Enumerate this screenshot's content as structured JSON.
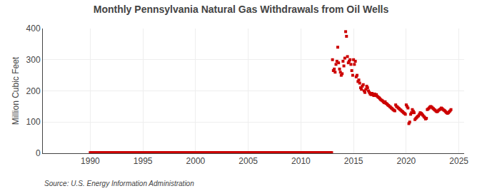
{
  "chart_data": {
    "type": "scatter",
    "title": "Monthly Pennsylvania Natural Gas Withdrawals from Oil Wells",
    "ylabel": "Million Cubic Feet",
    "annotations": [
      "Source: U.S. Energy Information Administration"
    ],
    "xlim": [
      1985.5,
      2025.5
    ],
    "xticks": [
      1990,
      1995,
      2000,
      2005,
      2010,
      2015,
      2020,
      2025
    ],
    "ylim": [
      0,
      400
    ],
    "yticks": [
      0,
      100,
      200,
      300,
      400
    ],
    "grid": true,
    "series": [
      {
        "color": "#cc0000",
        "marker": "square",
        "x": [
          1990.0,
          1990.08,
          1990.17,
          1990.25,
          1990.33,
          1990.42,
          1990.5,
          1990.58,
          1990.67,
          1990.75,
          1990.83,
          1990.92,
          1991.0,
          1991.08,
          1991.17,
          1991.25,
          1991.33,
          1991.42,
          1991.5,
          1991.58,
          1991.67,
          1991.75,
          1991.83,
          1991.92,
          1992.0,
          1992.08,
          1992.17,
          1992.25,
          1992.33,
          1992.42,
          1992.5,
          1992.58,
          1992.67,
          1992.75,
          1992.83,
          1992.92,
          1993.0,
          1993.08,
          1993.17,
          1993.25,
          1993.33,
          1993.42,
          1993.5,
          1993.58,
          1993.67,
          1993.75,
          1993.83,
          1993.92,
          1994.0,
          1994.08,
          1994.17,
          1994.25,
          1994.33,
          1994.42,
          1994.5,
          1994.58,
          1994.67,
          1994.75,
          1994.83,
          1994.92,
          1995.0,
          1995.08,
          1995.17,
          1995.25,
          1995.33,
          1995.42,
          1995.5,
          1995.58,
          1995.67,
          1995.75,
          1995.83,
          1995.92,
          1996.0,
          1996.08,
          1996.17,
          1996.25,
          1996.33,
          1996.42,
          1996.5,
          1996.58,
          1996.67,
          1996.75,
          1996.83,
          1996.92,
          1997.0,
          1997.08,
          1997.17,
          1997.25,
          1997.33,
          1997.42,
          1997.5,
          1997.58,
          1997.67,
          1997.75,
          1997.83,
          1997.92,
          1998.0,
          1998.08,
          1998.17,
          1998.25,
          1998.33,
          1998.42,
          1998.5,
          1998.58,
          1998.67,
          1998.75,
          1998.83,
          1998.92,
          1999.0,
          1999.08,
          1999.17,
          1999.25,
          1999.33,
          1999.42,
          1999.5,
          1999.58,
          1999.67,
          1999.75,
          1999.83,
          1999.92,
          2000.0,
          2000.08,
          2000.17,
          2000.25,
          2000.33,
          2000.42,
          2000.5,
          2000.58,
          2000.67,
          2000.75,
          2000.83,
          2000.92,
          2001.0,
          2001.08,
          2001.17,
          2001.25,
          2001.33,
          2001.42,
          2001.5,
          2001.58,
          2001.67,
          2001.75,
          2001.83,
          2001.92,
          2002.0,
          2002.08,
          2002.17,
          2002.25,
          2002.33,
          2002.42,
          2002.5,
          2002.58,
          2002.67,
          2002.75,
          2002.83,
          2002.92,
          2003.0,
          2003.08,
          2003.17,
          2003.25,
          2003.33,
          2003.42,
          2003.5,
          2003.58,
          2003.67,
          2003.75,
          2003.83,
          2003.92,
          2004.0,
          2004.08,
          2004.17,
          2004.25,
          2004.33,
          2004.42,
          2004.5,
          2004.58,
          2004.67,
          2004.75,
          2004.83,
          2004.92,
          2005.0,
          2005.08,
          2005.17,
          2005.25,
          2005.33,
          2005.42,
          2005.5,
          2005.58,
          2005.67,
          2005.75,
          2005.83,
          2005.92,
          2006.0,
          2006.08,
          2006.17,
          2006.25,
          2006.33,
          2006.42,
          2006.5,
          2006.58,
          2006.67,
          2006.75,
          2006.83,
          2006.92,
          2007.0,
          2007.08,
          2007.17,
          2007.25,
          2007.33,
          2007.42,
          2007.5,
          2007.58,
          2007.67,
          2007.75,
          2007.83,
          2007.92,
          2008.0,
          2008.08,
          2008.17,
          2008.25,
          2008.33,
          2008.42,
          2008.5,
          2008.58,
          2008.67,
          2008.75,
          2008.83,
          2008.92,
          2009.0,
          2009.08,
          2009.17,
          2009.25,
          2009.33,
          2009.42,
          2009.5,
          2009.58,
          2009.67,
          2009.75,
          2009.83,
          2009.92,
          2010.0,
          2010.08,
          2010.17,
          2010.25,
          2010.33,
          2010.42,
          2010.5,
          2010.58,
          2010.67,
          2010.75,
          2010.83,
          2010.92,
          2011.0,
          2011.08,
          2011.17,
          2011.25,
          2011.33,
          2011.42,
          2011.5,
          2011.58,
          2011.67,
          2011.75,
          2011.83,
          2011.92,
          2012.0,
          2012.08,
          2012.17,
          2012.25,
          2012.33,
          2012.42,
          2012.5,
          2012.58,
          2012.67,
          2012.75,
          2012.83,
          2012.92
        ],
        "values": [
          2,
          2,
          2,
          2,
          2,
          2,
          2,
          2,
          2,
          2,
          2,
          2,
          2,
          2,
          2,
          2,
          2,
          2,
          2,
          2,
          2,
          2,
          2,
          2,
          2,
          2,
          2,
          2,
          2,
          2,
          2,
          2,
          2,
          2,
          2,
          2,
          2,
          2,
          2,
          2,
          2,
          2,
          2,
          2,
          2,
          2,
          2,
          2,
          2,
          2,
          2,
          2,
          2,
          2,
          2,
          2,
          2,
          2,
          2,
          2,
          2,
          2,
          2,
          2,
          2,
          2,
          2,
          2,
          2,
          2,
          2,
          2,
          2,
          2,
          2,
          2,
          2,
          2,
          2,
          2,
          2,
          2,
          2,
          2,
          2,
          2,
          2,
          2,
          2,
          2,
          2,
          2,
          2,
          2,
          2,
          2,
          2,
          2,
          2,
          2,
          2,
          2,
          2,
          2,
          2,
          2,
          2,
          2,
          2,
          2,
          2,
          2,
          2,
          2,
          2,
          2,
          2,
          2,
          2,
          2,
          2,
          2,
          2,
          2,
          2,
          2,
          2,
          2,
          2,
          2,
          2,
          2,
          2,
          2,
          2,
          2,
          2,
          2,
          2,
          2,
          2,
          2,
          2,
          2,
          2,
          2,
          2,
          2,
          2,
          2,
          2,
          2,
          2,
          2,
          2,
          2,
          2,
          2,
          2,
          2,
          2,
          2,
          2,
          2,
          2,
          2,
          2,
          2,
          2,
          2,
          2,
          2,
          2,
          2,
          2,
          2,
          2,
          2,
          2,
          2,
          2,
          2,
          2,
          2,
          2,
          2,
          2,
          2,
          2,
          2,
          2,
          2,
          2,
          2,
          2,
          2,
          2,
          2,
          2,
          2,
          2,
          2,
          2,
          2,
          2,
          2,
          2,
          2,
          2,
          2,
          2,
          2,
          2,
          2,
          2,
          2,
          2,
          2,
          2,
          2,
          2,
          2,
          2,
          2,
          2,
          2,
          2,
          2,
          2,
          2,
          2,
          2,
          2,
          2,
          2,
          2,
          2,
          2,
          2,
          2,
          2,
          2,
          2,
          2,
          2,
          2,
          2,
          2,
          2,
          2,
          2,
          2,
          2,
          2,
          2,
          2,
          2,
          2,
          2,
          2,
          2,
          2,
          2,
          2,
          2,
          2,
          2,
          2,
          2,
          2,
          2,
          2,
          2,
          2,
          2,
          2
        ]
      },
      {
        "color": "#cc0000",
        "marker": "square",
        "x": [
          2013.0,
          2013.08,
          2013.17,
          2013.25,
          2013.33,
          2013.42,
          2013.5,
          2013.58,
          2013.67,
          2013.75,
          2013.83,
          2013.92,
          2014.0,
          2014.08,
          2014.17,
          2014.25,
          2014.33,
          2014.42,
          2014.5,
          2014.58,
          2014.67,
          2014.75,
          2014.83,
          2014.92,
          2015.0,
          2015.08,
          2015.17,
          2015.25,
          2015.33,
          2015.42,
          2015.5,
          2015.58,
          2015.67,
          2015.75,
          2015.83,
          2015.92,
          2016.0,
          2016.08,
          2016.17,
          2016.25,
          2016.33,
          2016.42,
          2016.5,
          2016.58,
          2016.67,
          2016.75,
          2016.83,
          2016.92,
          2017.0,
          2017.08,
          2017.17,
          2017.25,
          2017.33,
          2017.42,
          2017.5,
          2017.58,
          2017.67,
          2017.75,
          2017.83,
          2017.92,
          2018.0,
          2018.08,
          2018.17,
          2018.25,
          2018.33,
          2018.42,
          2018.5,
          2018.58,
          2018.67,
          2018.75,
          2018.83,
          2018.92,
          2019.0,
          2019.08,
          2019.17,
          2019.25,
          2019.33,
          2019.42,
          2019.5,
          2019.58,
          2019.67,
          2019.75,
          2019.83,
          2019.92,
          2020.0,
          2020.08,
          2020.17,
          2020.25,
          2020.33,
          2020.42,
          2020.5,
          2020.58,
          2020.67,
          2020.75,
          2020.83,
          2020.92,
          2021.0,
          2021.08,
          2021.17,
          2021.25,
          2021.33,
          2021.42,
          2021.5,
          2021.58,
          2021.67,
          2021.75,
          2021.83,
          2021.92,
          2022.0,
          2022.08,
          2022.17,
          2022.25,
          2022.33,
          2022.42,
          2022.5,
          2022.58,
          2022.67,
          2022.75,
          2022.83,
          2022.92,
          2023.0,
          2023.08,
          2023.17,
          2023.25,
          2023.33,
          2023.42,
          2023.5,
          2023.58,
          2023.67,
          2023.75,
          2023.83,
          2023.92,
          2024.0,
          2024.08,
          2024.17,
          2024.25
        ],
        "values": [
          300,
          265,
          270,
          260,
          285,
          295,
          340,
          290,
          270,
          260,
          250,
          255,
          295,
          280,
          305,
          390,
          375,
          310,
          290,
          295,
          300,
          285,
          265,
          250,
          300,
          285,
          295,
          245,
          250,
          230,
          235,
          225,
          210,
          205,
          215,
          220,
          200,
          195,
          205,
          215,
          210,
          200,
          195,
          190,
          188,
          192,
          188,
          185,
          190,
          185,
          188,
          183,
          180,
          178,
          175,
          172,
          170,
          168,
          165,
          162,
          165,
          160,
          158,
          155,
          153,
          150,
          148,
          145,
          143,
          140,
          138,
          136,
          155,
          150,
          148,
          145,
          143,
          140,
          138,
          135,
          133,
          130,
          128,
          125,
          155,
          150,
          145,
          95,
          100,
          125,
          130,
          140,
          135,
          130,
          108,
          112,
          115,
          118,
          120,
          125,
          130,
          128,
          125,
          122,
          118,
          115,
          110,
          112,
          140,
          142,
          145,
          148,
          150,
          148,
          145,
          143,
          140,
          138,
          135,
          133,
          135,
          138,
          140,
          142,
          145,
          143,
          140,
          138,
          136,
          133,
          130,
          128,
          130,
          133,
          136,
          140
        ]
      }
    ]
  }
}
